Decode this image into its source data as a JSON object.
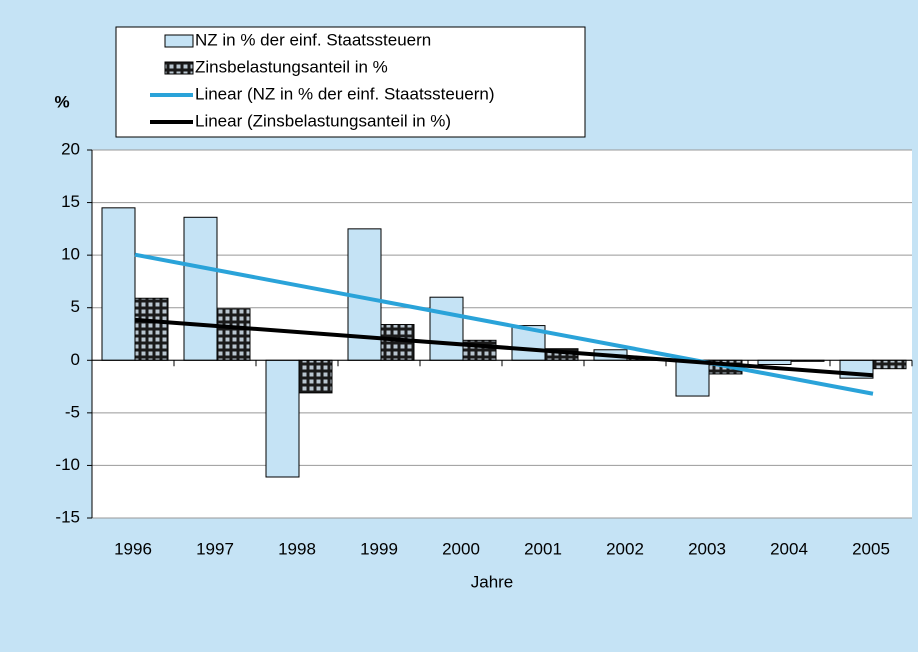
{
  "chart_data": {
    "type": "bar",
    "y_label": "%",
    "x_label": "Jahre",
    "categories": [
      "1996",
      "1997",
      "1998",
      "1999",
      "2000",
      "2001",
      "2002",
      "2003",
      "2004",
      "2005"
    ],
    "series": [
      {
        "name": "NZ in % der einf. Staatssteuern",
        "color": "#c5e3f5",
        "values": [
          14.5,
          13.6,
          -11.1,
          12.5,
          6.0,
          3.3,
          1.0,
          -3.4,
          -0.4,
          -1.7
        ]
      },
      {
        "name": "Zinsbelastungsanteil in %",
        "color": "#1a1a1a",
        "values": [
          5.9,
          4.9,
          -3.1,
          3.4,
          1.9,
          1.1,
          0.2,
          -1.3,
          -0.1,
          -0.8
        ]
      }
    ],
    "trendlines": [
      {
        "name": "Linear (NZ in % der einf. Staatssteuern)",
        "color": "#2aa3d9"
      },
      {
        "name": "Linear (Zinsbelastungsanteil in %)",
        "color": "#000000"
      }
    ],
    "ylim": [
      -15,
      20
    ],
    "yticks": [
      -15,
      -10,
      -5,
      0,
      5,
      10,
      15,
      20
    ],
    "grid": true
  }
}
